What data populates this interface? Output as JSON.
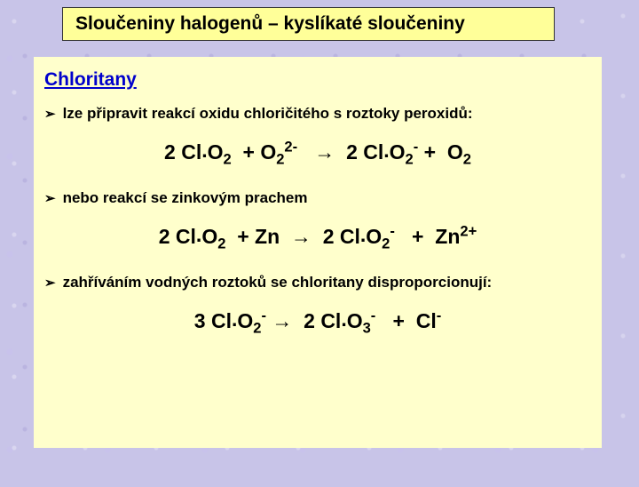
{
  "colors": {
    "background": "#c8c4e8",
    "title_box_bg": "#ffff99",
    "content_box_bg": "#ffffcc",
    "subtitle_color": "#0000cc",
    "text_color": "#000000",
    "border_color": "#333333"
  },
  "typography": {
    "title_fontsize": 21,
    "subtitle_fontsize": 21,
    "bullet_fontsize": 17,
    "equation_fontsize": 23,
    "font_family": "Arial"
  },
  "title": "Sloučeniny halogenů –  kyslíkaté sloučeniny",
  "subtitle": "Chloritany",
  "bullets": {
    "b1": "lze připravit reakcí oxidu chloričitého s roztoky peroxidů:",
    "b2": "nebo reakcí se zinkovým prachem",
    "b3": "zahříváním vodných roztoků se chloritany disproporcionují:"
  },
  "equations": {
    "eq1": {
      "lhs_coef1": "2",
      "lhs_species1_base": "Cl",
      "lhs_species1_dot": ".",
      "lhs_species1_O": "O",
      "lhs_species1_sub": "2",
      "plus1": "+",
      "lhs_coef2": "",
      "lhs_species2_O": "O",
      "lhs_species2_sub": "2",
      "lhs_species2_sup": "2-",
      "arrow": "→",
      "rhs_coef1": "2",
      "rhs_species1_base": "Cl",
      "rhs_species1_dot": ".",
      "rhs_species1_O": "O",
      "rhs_species1_sub": "2",
      "rhs_species1_sup": "-",
      "plus2": "+",
      "rhs_species2_O": "O",
      "rhs_species2_sub": "2"
    },
    "eq2": {
      "lhs_coef1": "2",
      "lhs_species1_base": "Cl",
      "lhs_species1_dot": ".",
      "lhs_species1_O": "O",
      "lhs_species1_sub": "2",
      "plus1": "+",
      "lhs_species2": "Zn",
      "arrow": "→",
      "rhs_coef1": "2",
      "rhs_species1_base": "Cl",
      "rhs_species1_dot": ".",
      "rhs_species1_O": "O",
      "rhs_species1_sub": "2",
      "rhs_species1_sup": "-",
      "plus2": "+",
      "rhs_species2": "Zn",
      "rhs_species2_sup": "2+"
    },
    "eq3": {
      "lhs_coef1": "3",
      "lhs_species1_base": "Cl",
      "lhs_species1_dot": ".",
      "lhs_species1_O": "O",
      "lhs_species1_sub": "2",
      "lhs_species1_sup": "-",
      "arrow": "→",
      "rhs_coef1": "2",
      "rhs_species1_base": "Cl",
      "rhs_species1_dot": ".",
      "rhs_species1_O": "O",
      "rhs_species1_sub": "3",
      "rhs_species1_sup": "-",
      "plus": "+",
      "rhs_species2": "Cl",
      "rhs_species2_sup": "-"
    }
  }
}
